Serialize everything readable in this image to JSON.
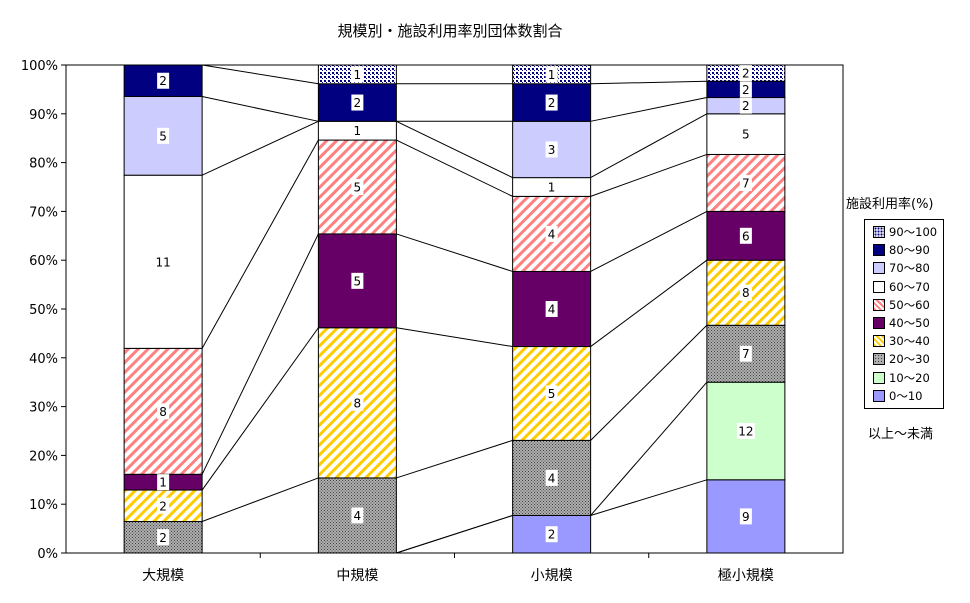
{
  "chart_data": {
    "type": "bar",
    "title": "規模別・施設利用率別団体数割合",
    "categories": [
      "大規模",
      "中規模",
      "小規模",
      "極小規模"
    ],
    "ylim": [
      0,
      100
    ],
    "y_ticks": [
      "0%",
      "10%",
      "20%",
      "30%",
      "40%",
      "50%",
      "60%",
      "70%",
      "80%",
      "90%",
      "100%"
    ],
    "legend_title": "施設利用率(%)",
    "legend_note": "以上～未満",
    "legend_position": "right",
    "series": [
      {
        "name": "0～10",
        "color": "#9999ff",
        "pattern": "solid",
        "values": [
          0,
          0,
          2,
          9
        ]
      },
      {
        "name": "10～20",
        "color": "#ccffcc",
        "pattern": "solid",
        "values": [
          0,
          0,
          0,
          12
        ]
      },
      {
        "name": "20～30",
        "color": "#969696",
        "pattern": "dots",
        "values": [
          2,
          4,
          4,
          7
        ]
      },
      {
        "name": "30～40",
        "color": "#ffcc00",
        "pattern": "stripes",
        "values": [
          2,
          8,
          5,
          8
        ]
      },
      {
        "name": "40～50",
        "color": "#660066",
        "pattern": "solid",
        "values": [
          1,
          5,
          4,
          6
        ]
      },
      {
        "name": "50～60",
        "color": "#ff8080",
        "pattern": "stripes",
        "values": [
          8,
          5,
          4,
          7
        ]
      },
      {
        "name": "60～70",
        "color": "#ffffff",
        "pattern": "solid",
        "values": [
          11,
          1,
          1,
          5
        ]
      },
      {
        "name": "70～80",
        "color": "#ccccff",
        "pattern": "solid",
        "values": [
          5,
          0,
          3,
          2
        ]
      },
      {
        "name": "80～90",
        "color": "#000080",
        "pattern": "solid",
        "values": [
          2,
          2,
          2,
          2
        ]
      },
      {
        "name": "90～100",
        "color": "#000080",
        "pattern": "dotsdense",
        "values": [
          0,
          1,
          1,
          2
        ]
      }
    ]
  }
}
